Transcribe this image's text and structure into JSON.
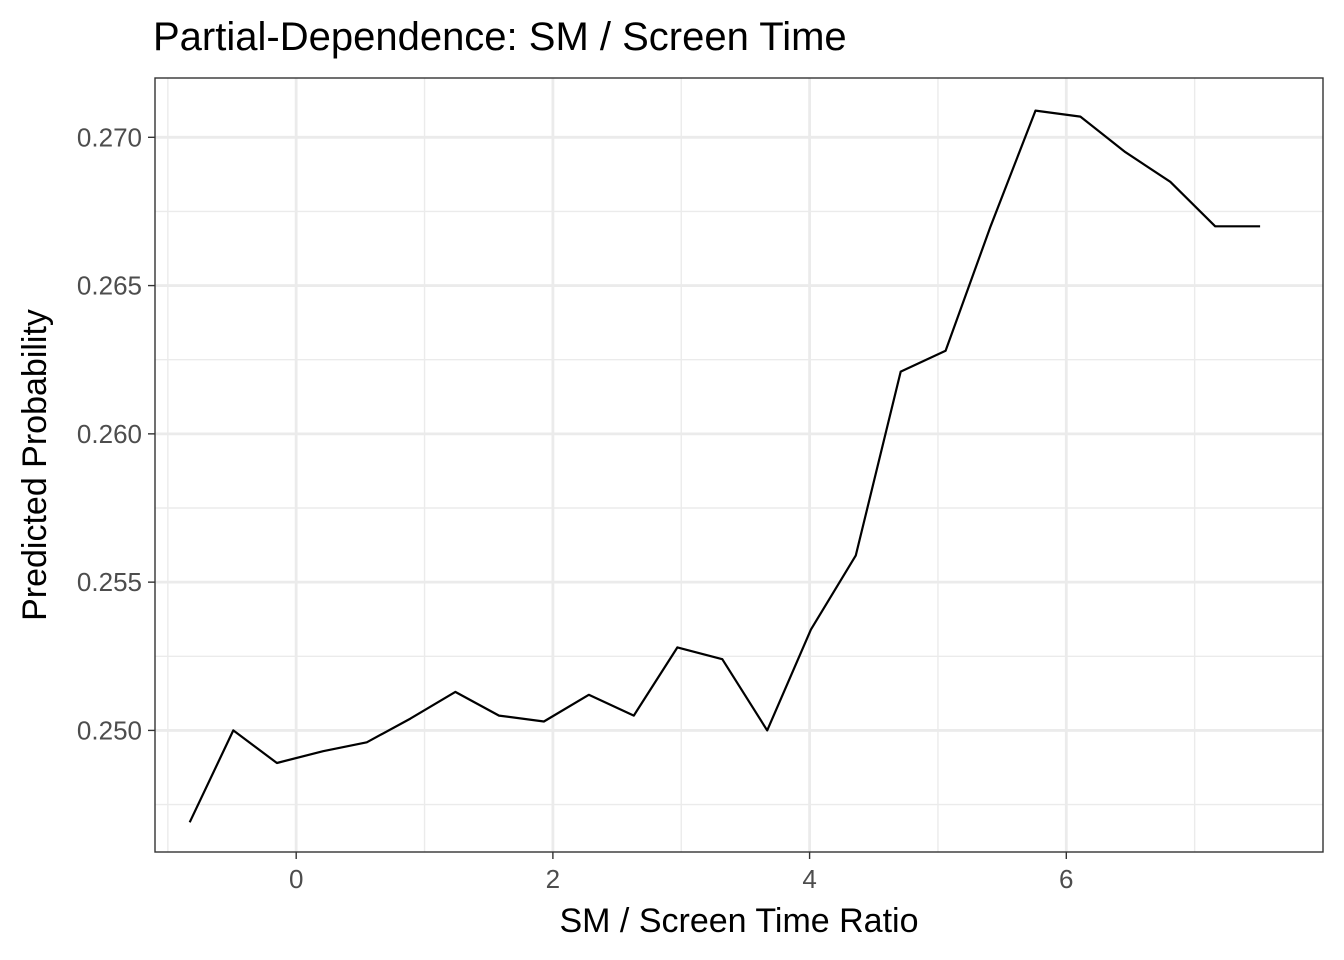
{
  "chart_data": {
    "type": "line",
    "title": "Partial-Dependence: SM / Screen Time",
    "xlabel": "SM / Screen Time Ratio",
    "ylabel": "Predicted Probability",
    "xlim": [
      -1.1,
      8.0
    ],
    "ylim": [
      0.2459,
      0.272
    ],
    "x_ticks": [
      0,
      2,
      4,
      6
    ],
    "x_tick_labels": [
      "0",
      "2",
      "4",
      "6"
    ],
    "y_ticks": [
      0.25,
      0.255,
      0.26,
      0.265,
      0.27
    ],
    "y_tick_labels": [
      "0.250",
      "0.255",
      "0.260",
      "0.265",
      "0.270"
    ],
    "x_minor_ticks": [
      -1,
      1,
      3,
      5,
      7
    ],
    "y_minor_ticks": [
      0.2475,
      0.2525,
      0.2575,
      0.2625,
      0.2675
    ],
    "grid": true,
    "legend": "none",
    "line_color": "#000000",
    "series": [
      {
        "x": [
          -0.83,
          -0.49,
          -0.15,
          0.21,
          0.55,
          0.89,
          1.24,
          1.58,
          1.93,
          2.28,
          2.63,
          2.97,
          3.32,
          3.67,
          4.01,
          4.36,
          4.71,
          5.06,
          5.41,
          5.76,
          6.11,
          6.46,
          6.81,
          7.16,
          7.51
        ],
        "y": [
          0.2469,
          0.25,
          0.2489,
          0.2493,
          0.2496,
          0.2504,
          0.2513,
          0.2505,
          0.2503,
          0.2512,
          0.2505,
          0.2528,
          0.2524,
          0.25,
          0.2534,
          0.2559,
          0.2621,
          0.2628,
          0.267,
          0.2709,
          0.2707,
          0.2695,
          0.2685,
          0.267,
          0.267
        ]
      }
    ]
  }
}
